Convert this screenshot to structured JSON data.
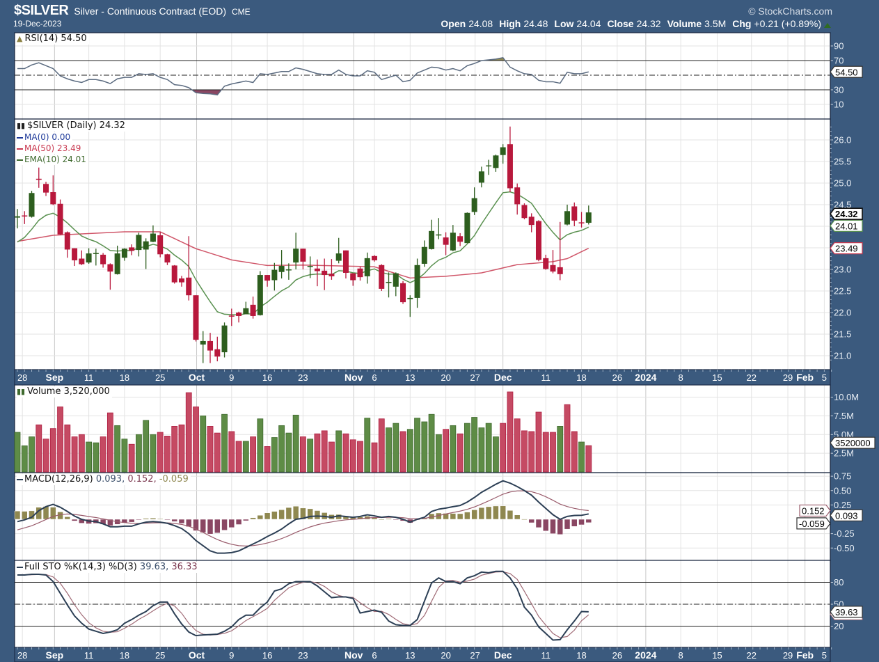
{
  "header": {
    "symbol": "$SILVER",
    "name": "Silver - Continuous Contract (EOD)",
    "exchange": "CME",
    "date": "19-Dec-2023",
    "copyright": "© StockCharts.com",
    "quote": [
      {
        "label": "Open",
        "value": "24.08"
      },
      {
        "label": "High",
        "value": "24.48"
      },
      {
        "label": "Low",
        "value": "24.04"
      },
      {
        "label": "Close",
        "value": "24.32"
      },
      {
        "label": "Volume",
        "value": "3.5M"
      },
      {
        "label": "Chg",
        "value": "+0.21 (+0.89%)"
      }
    ]
  },
  "legends": {
    "rsi": "RSI(14) 54.50",
    "price": "$SILVER (Daily) 24.32",
    "ma0": "MA(0) 0.00",
    "ma50": "MA(50) 23.49",
    "ema10": "EMA(10) 24.01",
    "volume": "Volume 3,520,000",
    "macd_name": "MACD(12,26,9)",
    "macd_val": " 0.093,",
    "macd_sig": " 0.152,",
    "macd_hist": " -0.059",
    "sto_name": "Full STO %K(14,3) %D(3)",
    "sto_k": " 39.63,",
    "sto_d": " 36.33"
  },
  "colors": {
    "background": "#3b5a7e",
    "up": "#2d5e1e",
    "down": "#b8183c",
    "vol_up": "#5e8c46",
    "vol_down": "#c54a63",
    "ma0": "#1f3a9a",
    "ma50": "#c8384f",
    "ema10": "#5a9150",
    "rsi": "#5b6b80",
    "macd": "#2c3f55",
    "signal": "#9a5c6c",
    "hist_pos": "#8f8850",
    "hist_neg": "#8a4763",
    "sto_k": "#2c3f55",
    "sto_d": "#a06b76"
  },
  "chart_data": {
    "type": "candlestick",
    "title": "$SILVER (Daily)",
    "x_ticks": [
      {
        "label": "28",
        "i": 0.7,
        "major": false
      },
      {
        "label": "Sep",
        "i": 5.2,
        "major": true
      },
      {
        "label": "11",
        "i": 10,
        "major": false
      },
      {
        "label": "18",
        "i": 15,
        "major": false
      },
      {
        "label": "25",
        "i": 20,
        "major": false
      },
      {
        "label": "Oct",
        "i": 25.1,
        "major": true
      },
      {
        "label": "9",
        "i": 30,
        "major": false
      },
      {
        "label": "16",
        "i": 35,
        "major": false
      },
      {
        "label": "23",
        "i": 40,
        "major": false
      },
      {
        "label": "Nov",
        "i": 47.1,
        "major": true
      },
      {
        "label": "6",
        "i": 50,
        "major": false
      },
      {
        "label": "13",
        "i": 55,
        "major": false
      },
      {
        "label": "20",
        "i": 60,
        "major": false
      },
      {
        "label": "27",
        "i": 64.1,
        "major": false
      },
      {
        "label": "Dec",
        "i": 68,
        "major": true
      },
      {
        "label": "11",
        "i": 74,
        "major": false
      },
      {
        "label": "18",
        "i": 79,
        "major": false
      },
      {
        "label": "26",
        "i": 84,
        "major": false
      },
      {
        "label": "2024",
        "i": 88,
        "major": true
      },
      {
        "label": "8",
        "i": 92.9,
        "major": false
      },
      {
        "label": "15",
        "i": 98,
        "major": false
      },
      {
        "label": "22",
        "i": 102.8,
        "major": false
      },
      {
        "label": "29",
        "i": 107.9,
        "major": false
      },
      {
        "label": "Feb",
        "i": 110.3,
        "major": true
      },
      {
        "label": "5",
        "i": 113,
        "major": false
      }
    ],
    "price": {
      "ylim": [
        20.8,
        26.5
      ],
      "ticks": [
        "21.0",
        "21.5",
        "22.0",
        "22.5",
        "23.0",
        "23.5",
        "24.0",
        "24.5",
        "25.0",
        "25.5",
        "26.0"
      ],
      "hidden_ticks": [
        "23.5",
        "24.0"
      ],
      "ohlc": [
        [
          24.2,
          24.4,
          23.95,
          24.23
        ],
        [
          24.25,
          24.35,
          24.05,
          24.23
        ],
        [
          24.22,
          24.82,
          24.2,
          24.77
        ],
        [
          25.1,
          25.36,
          24.89,
          25.08
        ],
        [
          24.98,
          25.03,
          24.7,
          24.78
        ],
        [
          24.79,
          25.18,
          24.49,
          24.51
        ],
        [
          24.52,
          24.62,
          23.8,
          23.81
        ],
        [
          23.86,
          23.88,
          23.27,
          23.46
        ],
        [
          23.49,
          23.49,
          23.08,
          23.21
        ],
        [
          23.25,
          23.44,
          23.1,
          23.12
        ],
        [
          23.16,
          23.49,
          23.13,
          23.37
        ],
        [
          23.37,
          23.48,
          23.09,
          23.38
        ],
        [
          23.34,
          23.38,
          23.04,
          23.12
        ],
        [
          23.12,
          23.14,
          22.53,
          22.95
        ],
        [
          22.89,
          23.55,
          22.88,
          23.37
        ],
        [
          23.27,
          23.49,
          23.2,
          23.48
        ],
        [
          23.51,
          23.58,
          23.33,
          23.43
        ],
        [
          23.45,
          23.85,
          23.3,
          23.8
        ],
        [
          23.46,
          23.72,
          23.01,
          23.65
        ],
        [
          23.64,
          24.02,
          23.63,
          23.83
        ],
        [
          23.79,
          23.87,
          23.28,
          23.35
        ],
        [
          23.35,
          23.36,
          23.1,
          23.16
        ],
        [
          23.09,
          23.1,
          22.67,
          22.7
        ],
        [
          22.79,
          22.85,
          22.6,
          22.7
        ],
        [
          22.81,
          23.77,
          22.28,
          22.4
        ],
        [
          22.4,
          22.4,
          21.33,
          21.37
        ],
        [
          21.26,
          21.57,
          20.83,
          21.34
        ],
        [
          21.34,
          21.53,
          20.83,
          21.12
        ],
        [
          21.15,
          21.44,
          20.87,
          20.98
        ],
        [
          21.08,
          21.77,
          20.96,
          21.7
        ],
        [
          21.93,
          22.09,
          21.69,
          21.91
        ],
        [
          22.0,
          22.02,
          21.77,
          21.92
        ],
        [
          21.96,
          22.25,
          21.96,
          22.1
        ],
        [
          22.18,
          22.37,
          21.86,
          21.92
        ],
        [
          21.94,
          22.96,
          21.93,
          22.87
        ],
        [
          22.87,
          22.87,
          22.6,
          22.74
        ],
        [
          22.75,
          23.15,
          22.51,
          22.99
        ],
        [
          22.94,
          23.45,
          22.79,
          23.08
        ],
        [
          22.99,
          23.14,
          22.76,
          23.0
        ],
        [
          23.16,
          23.85,
          23.0,
          23.48
        ],
        [
          23.48,
          23.48,
          23.0,
          23.18
        ],
        [
          23.07,
          23.3,
          22.8,
          23.08
        ],
        [
          23.02,
          23.23,
          22.61,
          22.96
        ],
        [
          22.97,
          23.25,
          22.52,
          22.87
        ],
        [
          22.9,
          23.24,
          22.76,
          22.84
        ],
        [
          23.2,
          23.73,
          23.14,
          23.37
        ],
        [
          23.44,
          23.44,
          22.79,
          22.92
        ],
        [
          22.91,
          22.91,
          22.62,
          22.75
        ],
        [
          23.02,
          23.06,
          22.74,
          22.82
        ],
        [
          22.84,
          23.39,
          22.67,
          23.26
        ],
        [
          23.31,
          23.33,
          23.18,
          23.21
        ],
        [
          23.1,
          23.12,
          22.5,
          22.55
        ],
        [
          22.7,
          22.93,
          22.35,
          22.71
        ],
        [
          22.6,
          22.93,
          22.38,
          22.91
        ],
        [
          22.68,
          22.73,
          22.2,
          22.24
        ],
        [
          22.31,
          22.4,
          21.9,
          22.34
        ],
        [
          22.34,
          23.25,
          22.11,
          23.1
        ],
        [
          23.13,
          23.67,
          23.06,
          23.52
        ],
        [
          23.47,
          24.15,
          23.46,
          23.89
        ],
        [
          23.8,
          24.19,
          23.7,
          23.81
        ],
        [
          23.74,
          23.86,
          23.33,
          23.57
        ],
        [
          23.44,
          24.03,
          23.42,
          23.85
        ],
        [
          23.77,
          23.84,
          23.54,
          23.64
        ],
        [
          23.61,
          24.32,
          23.61,
          24.31
        ],
        [
          24.33,
          24.9,
          24.26,
          24.65
        ],
        [
          25.01,
          25.38,
          24.9,
          25.27
        ],
        [
          25.4,
          25.54,
          25.19,
          25.41
        ],
        [
          25.35,
          25.66,
          25.26,
          25.64
        ],
        [
          25.65,
          25.9,
          25.45,
          25.83
        ],
        [
          25.9,
          26.31,
          24.79,
          24.88
        ],
        [
          24.9,
          24.99,
          24.27,
          24.51
        ],
        [
          24.49,
          24.53,
          24.16,
          24.19
        ],
        [
          24.22,
          24.3,
          23.86,
          24.03
        ],
        [
          24.12,
          24.14,
          23.19,
          23.22
        ],
        [
          23.26,
          23.34,
          22.99,
          23.01
        ],
        [
          23.1,
          23.45,
          22.91,
          22.95
        ],
        [
          23.05,
          24.1,
          22.75,
          22.89
        ],
        [
          24.04,
          24.5,
          24.02,
          24.35
        ],
        [
          24.46,
          24.55,
          24.0,
          24.13
        ],
        [
          24.09,
          24.33,
          23.97,
          24.08
        ],
        [
          24.08,
          24.48,
          24.04,
          24.32
        ]
      ],
      "ema10_seed": 23.5,
      "ma50_points": [
        [
          0,
          23.65
        ],
        [
          5,
          23.79
        ],
        [
          15,
          23.87
        ],
        [
          20,
          23.87
        ],
        [
          25,
          23.48
        ],
        [
          30,
          23.22
        ],
        [
          35,
          23.09
        ],
        [
          40,
          23.1
        ],
        [
          50,
          23.06
        ],
        [
          55,
          22.8
        ],
        [
          60,
          22.84
        ],
        [
          65,
          22.92
        ],
        [
          70,
          23.11
        ],
        [
          75,
          23.18
        ],
        [
          77,
          23.25
        ],
        [
          80,
          23.49
        ]
      ],
      "tags": [
        {
          "value": "24.32",
          "kind": "close"
        },
        {
          "value": "24.01",
          "kind": "ema10"
        },
        {
          "value": "23.49",
          "kind": "ma50"
        }
      ]
    },
    "rsi": {
      "ylim": [
        0,
        100
      ],
      "ticks": [
        "90",
        "70",
        "30",
        "10"
      ],
      "levels": {
        "overbought": 70,
        "mid": 50,
        "oversold": 30
      },
      "values": [
        59,
        59,
        64,
        67,
        63,
        59,
        49,
        45,
        42,
        40,
        44,
        44,
        42,
        38.5,
        45,
        47,
        47,
        52,
        51,
        52,
        47,
        44,
        37,
        36,
        33,
        26,
        25,
        24.5,
        23,
        35,
        38,
        40,
        42,
        40,
        52,
        51,
        53,
        55,
        55,
        60,
        58,
        55,
        52,
        51,
        51,
        57,
        51,
        49,
        49,
        56,
        54,
        44,
        47,
        50,
        41,
        43,
        53,
        57,
        61,
        60,
        57,
        59,
        56,
        63,
        66,
        70,
        71,
        72,
        74,
        61,
        56,
        52,
        51,
        43,
        41,
        41,
        39,
        54,
        52,
        52,
        54.5
      ],
      "tag": "54.50"
    },
    "volume": {
      "unit": "M",
      "ticks": [
        "2.5M",
        "5.0M",
        "7.5M",
        "10.0M"
      ],
      "values": [
        5.3,
        3.5,
        4.7,
        6.3,
        4.4,
        5.8,
        8.7,
        6.3,
        4.7,
        5.0,
        4.0,
        3.9,
        4.7,
        7.9,
        6.2,
        4.4,
        3.7,
        5.0,
        6.9,
        5.0,
        5.3,
        4.8,
        6.1,
        6.3,
        10.6,
        8.7,
        7.5,
        6.1,
        5.2,
        7.7,
        5.4,
        4.1,
        4.1,
        4.7,
        7.1,
        3.4,
        4.6,
        6.2,
        5.2,
        7.6,
        4.7,
        4.4,
        5.1,
        5.5,
        4.0,
        5.5,
        5.1,
        4.3,
        4.1,
        7.2,
        3.9,
        7.1,
        5.9,
        6.5,
        5.4,
        5.7,
        7.2,
        6.7,
        7.7,
        5.0,
        5.7,
        6.2,
        5.1,
        6.5,
        7.3,
        5.9,
        6.5,
        4.7,
        6.5,
        10.7,
        7.1,
        5.5,
        5.4,
        8.0,
        5.3,
        5.3,
        6.1,
        9.0,
        5.4,
        4.0,
        3.52
      ],
      "direction": "ugurrrrrrruurrugruuurrrrrrgrrgrrgrgrgggg rgrrrgrrrgrrggrgggggrgrgggggrrrrrrrrgrrg",
      "tag": "3520000"
    },
    "macd": {
      "ticks": [
        "0.75",
        "0.50",
        "0.25",
        "-0.25",
        "-0.50"
      ],
      "values": [
        -0.04,
        -0.01,
        0.035,
        0.15,
        0.22,
        0.26,
        0.21,
        0.136,
        0.056,
        0,
        -0.03,
        -0.04,
        -0.08,
        -0.13,
        -0.13,
        -0.12,
        -0.12,
        -0.08,
        -0.05,
        -0.04,
        -0.05,
        -0.07,
        -0.11,
        -0.16,
        -0.25,
        -0.37,
        -0.46,
        -0.55,
        -0.59,
        -0.59,
        -0.58,
        -0.55,
        -0.49,
        -0.43,
        -0.37,
        -0.3,
        -0.24,
        -0.17,
        -0.08,
        0.0,
        0.017,
        0.05,
        0.056,
        0.05,
        0.035,
        0.06,
        0.049,
        0.035,
        0.05,
        0.078,
        0.06,
        0.035,
        0.05,
        0.035,
        0.0,
        -0.05,
        0.0,
        0.035,
        0.136,
        0.176,
        0.196,
        0.22,
        0.24,
        0.3,
        0.38,
        0.47,
        0.54,
        0.61,
        0.67,
        0.63,
        0.57,
        0.5,
        0.42,
        0.3,
        0.19,
        0.08,
        0.0,
        0.05,
        0.066,
        0.07,
        0.093
      ],
      "signal_seed": -0.22,
      "tags": [
        "0.152",
        "0.093",
        "-0.059"
      ]
    },
    "stochastic": {
      "ticks": [
        "80",
        "50",
        "20"
      ],
      "levels": {
        "upper": 80,
        "mid": 50,
        "lower": 20
      },
      "k": [
        90,
        90,
        91,
        91,
        90,
        81,
        65,
        49,
        34,
        24,
        16,
        13,
        10,
        12,
        15,
        24,
        29,
        35,
        40,
        48,
        53,
        53,
        37,
        23,
        12,
        7,
        8,
        8.5,
        9,
        13,
        19,
        29,
        35,
        35,
        45,
        53,
        68,
        71,
        78,
        81,
        81,
        81,
        75,
        67,
        59,
        60,
        60,
        58,
        38,
        40,
        42,
        39,
        27,
        22,
        21,
        21,
        29,
        54,
        79,
        86,
        81,
        81,
        78,
        86,
        89,
        94,
        93,
        95,
        95,
        86,
        71,
        46,
        35,
        19,
        10,
        1,
        1.5,
        15,
        27,
        40,
        39.63
      ],
      "tag": "39.63"
    }
  }
}
